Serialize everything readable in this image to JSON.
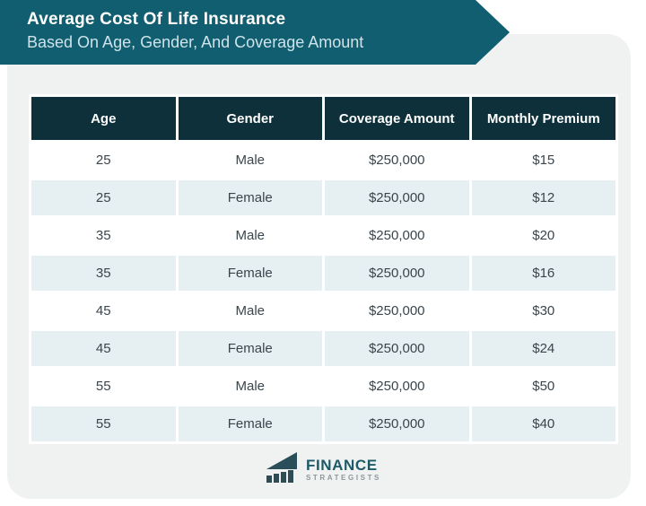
{
  "banner": {
    "title": "Average Cost Of Life Insurance",
    "subtitle": "Based On Age, Gender, And Coverage Amount"
  },
  "chart_data": {
    "type": "table",
    "title": "Average Cost Of Life Insurance Based On Age, Gender, And Coverage Amount",
    "columns": [
      "Age",
      "Gender",
      "Coverage Amount",
      "Monthly Premium"
    ],
    "rows": [
      [
        "25",
        "Male",
        "$250,000",
        "$15"
      ],
      [
        "25",
        "Female",
        "$250,000",
        "$12"
      ],
      [
        "35",
        "Male",
        "$250,000",
        "$20"
      ],
      [
        "35",
        "Female",
        "$250,000",
        "$16"
      ],
      [
        "45",
        "Male",
        "$250,000",
        "$30"
      ],
      [
        "45",
        "Female",
        "$250,000",
        "$24"
      ],
      [
        "55",
        "Male",
        "$250,000",
        "$50"
      ],
      [
        "55",
        "Female",
        "$250,000",
        "$40"
      ]
    ]
  },
  "logo": {
    "name": "FINANCE",
    "sub": "STRATEGISTS",
    "icon": "bar-chart-swoosh-icon"
  },
  "colors": {
    "banner_bg": "#115e70",
    "header_bg": "#0d303a",
    "row_alt_bg": "#e6eff1",
    "row_bg": "#ffffff",
    "card_bg": "#f0f1f1",
    "subtitle_text": "#cde3e9",
    "body_text": "#3a454c",
    "logo_teal": "#1d5a67",
    "logo_gray": "#8d979b"
  }
}
